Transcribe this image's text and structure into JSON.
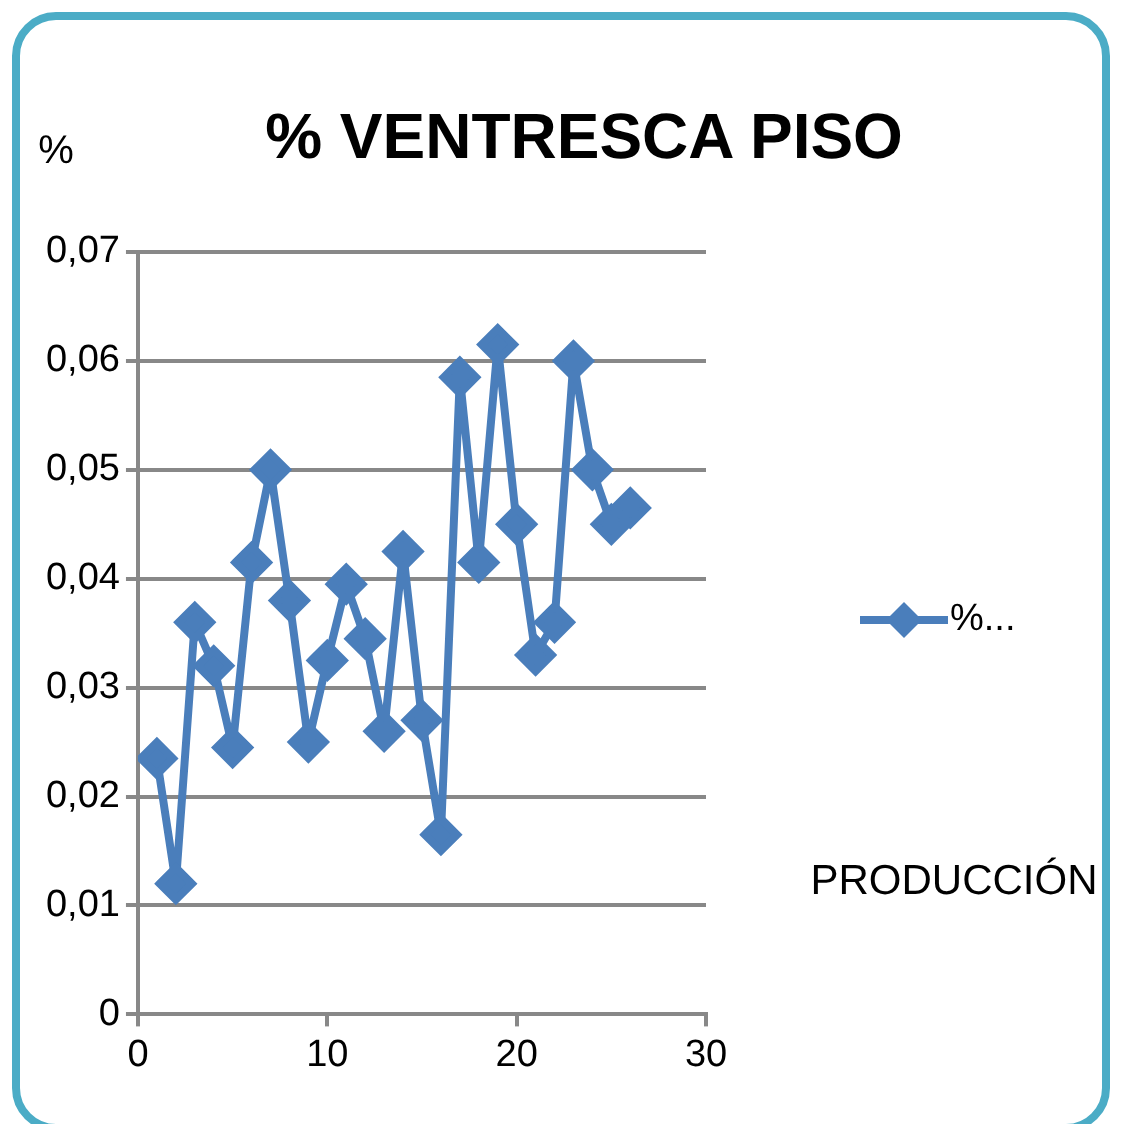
{
  "chart_data": {
    "type": "line",
    "title": "% VENTRESCA PISO",
    "xlabel": "PRODUCCIÓN",
    "ylabel": "%",
    "series": [
      {
        "name": "%...",
        "color": "#4a7ebb",
        "x": [
          1,
          2,
          3,
          4,
          5,
          6,
          7,
          8,
          9,
          10,
          11,
          12,
          13,
          14,
          15,
          16,
          17,
          18,
          19,
          20,
          21,
          22,
          23,
          24,
          25,
          26
        ],
        "values": [
          0.0235,
          0.012,
          0.036,
          0.032,
          0.0245,
          0.0415,
          0.05,
          0.038,
          0.025,
          0.0325,
          0.0395,
          0.0345,
          0.026,
          0.0425,
          0.027,
          0.0165,
          0.0585,
          0.0415,
          0.0615,
          0.045,
          0.033,
          0.036,
          0.06,
          0.05,
          0.045,
          0.0465
        ]
      }
    ],
    "xlim": [
      0,
      30
    ],
    "xticks": [
      0,
      10,
      20,
      30
    ],
    "ylim": [
      0,
      0.07
    ],
    "yticks": [
      {
        "value": 0,
        "label": "0"
      },
      {
        "value": 0.01,
        "label": "0,01"
      },
      {
        "value": 0.02,
        "label": "0,02"
      },
      {
        "value": 0.03,
        "label": "0,03"
      },
      {
        "value": 0.04,
        "label": "0,04"
      },
      {
        "value": 0.05,
        "label": "0,05"
      },
      {
        "value": 0.06,
        "label": "0,06"
      },
      {
        "value": 0.07,
        "label": "0,07"
      }
    ],
    "grid": "y",
    "legend": "right",
    "marker": "diamond",
    "line_style": "solid"
  }
}
